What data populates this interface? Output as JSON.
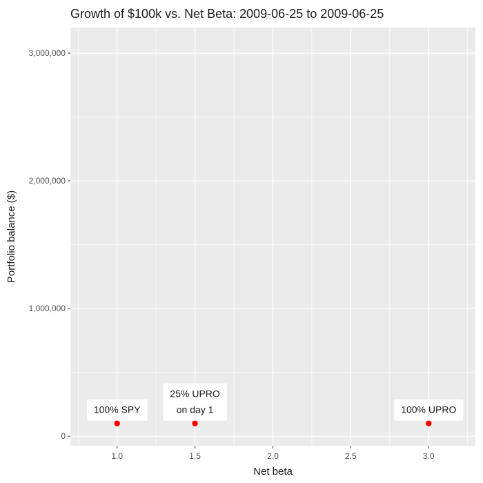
{
  "chart_data": {
    "type": "scatter",
    "title": "Growth of $100k vs. Net Beta: 2009-06-25 to 2009-06-25",
    "xlabel": "Net beta",
    "ylabel": "Portfolio balance ($)",
    "xlim": [
      0.7,
      3.3
    ],
    "ylim": [
      -75000,
      3200000
    ],
    "x_ticks": [
      1.0,
      1.5,
      2.0,
      2.5,
      3.0
    ],
    "x_tick_labels": [
      "1.0",
      "1.5",
      "2.0",
      "2.5",
      "3.0"
    ],
    "y_ticks": [
      0,
      1000000,
      2000000,
      3000000
    ],
    "y_tick_labels": [
      "0",
      "1,000,000",
      "2,000,000",
      "3,000,000"
    ],
    "grid": true,
    "panel_background": "#ebebeb",
    "grid_color": "#ffffff",
    "point_color": "#ff0000",
    "points": [
      {
        "x": 1.0,
        "y": 100000,
        "label": "100% SPY"
      },
      {
        "x": 1.5,
        "y": 100000,
        "label": "25% UPRO on day 1"
      },
      {
        "x": 3.0,
        "y": 100000,
        "label": "100% UPRO"
      }
    ]
  }
}
